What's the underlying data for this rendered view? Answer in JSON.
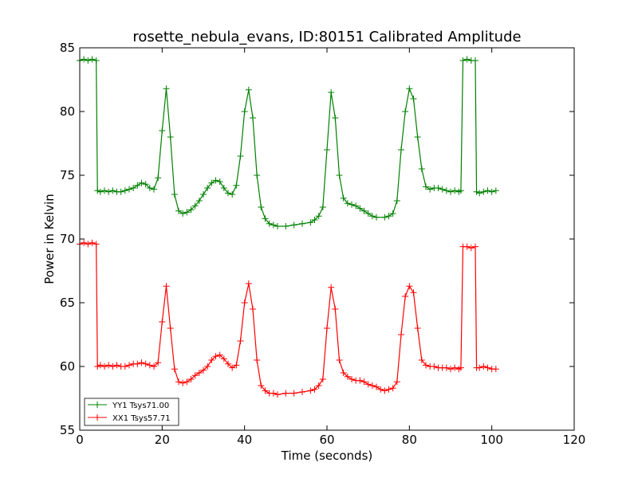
{
  "chart_data": {
    "type": "line",
    "title": "rosette_nebula_evans, ID:80151 Calibrated Amplitude",
    "xlabel": "Time (seconds)",
    "ylabel": "Power in Kelvin",
    "xlim": [
      0,
      120
    ],
    "ylim": [
      55,
      85
    ],
    "xticks": [
      0,
      20,
      40,
      60,
      80,
      100,
      120
    ],
    "yticks": [
      55,
      60,
      65,
      70,
      75,
      80,
      85
    ],
    "grid": false,
    "legend_position": "lower-left",
    "marker": "+",
    "series": [
      {
        "name": "YY1 Tsys71.00",
        "color": "#008000",
        "points": [
          [
            0,
            84.0
          ],
          [
            1,
            84.1
          ],
          [
            2,
            84.0
          ],
          [
            3,
            84.1
          ],
          [
            4,
            84.0
          ],
          [
            4.3,
            73.8
          ],
          [
            5,
            73.7
          ],
          [
            6,
            73.8
          ],
          [
            7,
            73.7
          ],
          [
            8,
            73.8
          ],
          [
            9,
            73.7
          ],
          [
            10,
            73.7
          ],
          [
            11,
            73.8
          ],
          [
            12,
            73.9
          ],
          [
            13,
            74.0
          ],
          [
            14,
            74.2
          ],
          [
            15,
            74.4
          ],
          [
            16,
            74.3
          ],
          [
            17,
            74.0
          ],
          [
            18,
            73.9
          ],
          [
            19,
            74.8
          ],
          [
            20,
            78.5
          ],
          [
            21,
            81.8
          ],
          [
            22,
            78.0
          ],
          [
            23,
            73.5
          ],
          [
            24,
            72.2
          ],
          [
            25,
            72.0
          ],
          [
            26,
            72.1
          ],
          [
            27,
            72.3
          ],
          [
            28,
            72.6
          ],
          [
            29,
            73.0
          ],
          [
            30,
            73.5
          ],
          [
            31,
            74.0
          ],
          [
            32,
            74.4
          ],
          [
            33,
            74.6
          ],
          [
            34,
            74.5
          ],
          [
            35,
            74.0
          ],
          [
            36,
            73.6
          ],
          [
            37,
            73.5
          ],
          [
            38,
            74.2
          ],
          [
            39,
            76.5
          ],
          [
            40,
            80.0
          ],
          [
            41,
            81.7
          ],
          [
            42,
            79.5
          ],
          [
            43,
            75.0
          ],
          [
            44,
            72.5
          ],
          [
            45,
            71.6
          ],
          [
            46,
            71.2
          ],
          [
            47,
            71.1
          ],
          [
            48,
            71.0
          ],
          [
            50,
            71.0
          ],
          [
            52,
            71.1
          ],
          [
            54,
            71.2
          ],
          [
            56,
            71.3
          ],
          [
            57,
            71.5
          ],
          [
            58,
            71.8
          ],
          [
            59,
            72.5
          ],
          [
            60,
            77.0
          ],
          [
            61,
            81.5
          ],
          [
            62,
            79.5
          ],
          [
            63,
            75.0
          ],
          [
            64,
            73.2
          ],
          [
            65,
            72.8
          ],
          [
            66,
            72.7
          ],
          [
            67,
            72.6
          ],
          [
            68,
            72.4
          ],
          [
            69,
            72.2
          ],
          [
            70,
            72.0
          ],
          [
            71,
            71.8
          ],
          [
            72,
            71.7
          ],
          [
            74,
            71.7
          ],
          [
            75,
            71.8
          ],
          [
            76,
            72.0
          ],
          [
            77,
            73.0
          ],
          [
            78,
            77.0
          ],
          [
            79,
            80.0
          ],
          [
            80,
            81.8
          ],
          [
            81,
            81.0
          ],
          [
            82,
            78.0
          ],
          [
            83,
            75.5
          ],
          [
            84,
            74.1
          ],
          [
            85,
            73.9
          ],
          [
            86,
            74.0
          ],
          [
            87,
            74.0
          ],
          [
            88,
            73.9
          ],
          [
            89,
            73.8
          ],
          [
            90,
            73.7
          ],
          [
            91,
            73.8
          ],
          [
            92,
            73.7
          ],
          [
            92.5,
            73.8
          ],
          [
            93,
            84.0
          ],
          [
            94,
            84.1
          ],
          [
            95,
            84.0
          ],
          [
            96,
            84.0
          ],
          [
            96.3,
            73.7
          ],
          [
            97,
            73.6
          ],
          [
            98,
            73.7
          ],
          [
            99,
            73.8
          ],
          [
            100,
            73.7
          ],
          [
            101,
            73.8
          ]
        ]
      },
      {
        "name": "XX1 Tsys57.71",
        "color": "#ff0000",
        "points": [
          [
            0,
            69.6
          ],
          [
            1,
            69.7
          ],
          [
            2,
            69.6
          ],
          [
            3,
            69.7
          ],
          [
            4,
            69.6
          ],
          [
            4.3,
            60.0
          ],
          [
            5,
            60.1
          ],
          [
            6,
            60.0
          ],
          [
            7,
            60.1
          ],
          [
            8,
            60.0
          ],
          [
            9,
            60.1
          ],
          [
            10,
            60.0
          ],
          [
            11,
            60.0
          ],
          [
            12,
            60.1
          ],
          [
            13,
            60.2
          ],
          [
            14,
            60.2
          ],
          [
            15,
            60.3
          ],
          [
            16,
            60.2
          ],
          [
            17,
            60.1
          ],
          [
            18,
            60.0
          ],
          [
            19,
            60.3
          ],
          [
            20,
            63.5
          ],
          [
            21,
            66.3
          ],
          [
            22,
            63.0
          ],
          [
            23,
            59.8
          ],
          [
            24,
            58.8
          ],
          [
            25,
            58.7
          ],
          [
            26,
            58.8
          ],
          [
            27,
            59.0
          ],
          [
            28,
            59.3
          ],
          [
            29,
            59.5
          ],
          [
            30,
            59.7
          ],
          [
            31,
            60.0
          ],
          [
            32,
            60.5
          ],
          [
            33,
            60.8
          ],
          [
            34,
            60.9
          ],
          [
            35,
            60.6
          ],
          [
            36,
            60.2
          ],
          [
            37,
            59.9
          ],
          [
            38,
            60.1
          ],
          [
            39,
            62.0
          ],
          [
            40,
            65.0
          ],
          [
            41,
            66.5
          ],
          [
            42,
            64.5
          ],
          [
            43,
            60.5
          ],
          [
            44,
            58.5
          ],
          [
            45,
            58.1
          ],
          [
            46,
            57.9
          ],
          [
            47,
            57.9
          ],
          [
            48,
            57.8
          ],
          [
            50,
            57.9
          ],
          [
            52,
            57.9
          ],
          [
            54,
            58.0
          ],
          [
            56,
            58.1
          ],
          [
            57,
            58.2
          ],
          [
            58,
            58.5
          ],
          [
            59,
            59.0
          ],
          [
            60,
            63.0
          ],
          [
            61,
            66.2
          ],
          [
            62,
            64.5
          ],
          [
            63,
            60.5
          ],
          [
            64,
            59.5
          ],
          [
            65,
            59.2
          ],
          [
            66,
            59.0
          ],
          [
            67,
            58.9
          ],
          [
            68,
            58.9
          ],
          [
            69,
            58.8
          ],
          [
            70,
            58.6
          ],
          [
            71,
            58.5
          ],
          [
            72,
            58.4
          ],
          [
            73,
            58.2
          ],
          [
            74,
            58.1
          ],
          [
            75,
            58.2
          ],
          [
            76,
            58.3
          ],
          [
            77,
            58.8
          ],
          [
            78,
            62.5
          ],
          [
            79,
            65.5
          ],
          [
            80,
            66.3
          ],
          [
            81,
            65.8
          ],
          [
            82,
            63.0
          ],
          [
            83,
            60.5
          ],
          [
            84,
            60.1
          ],
          [
            85,
            60.0
          ],
          [
            86,
            60.0
          ],
          [
            87,
            59.9
          ],
          [
            88,
            59.9
          ],
          [
            89,
            59.9
          ],
          [
            90,
            59.8
          ],
          [
            91,
            59.9
          ],
          [
            92,
            59.8
          ],
          [
            92.5,
            59.9
          ],
          [
            93,
            69.4
          ],
          [
            94,
            69.4
          ],
          [
            95,
            69.3
          ],
          [
            96,
            69.4
          ],
          [
            96.3,
            59.9
          ],
          [
            97,
            59.9
          ],
          [
            98,
            60.0
          ],
          [
            99,
            59.9
          ],
          [
            100,
            59.8
          ],
          [
            101,
            59.8
          ]
        ]
      }
    ]
  }
}
